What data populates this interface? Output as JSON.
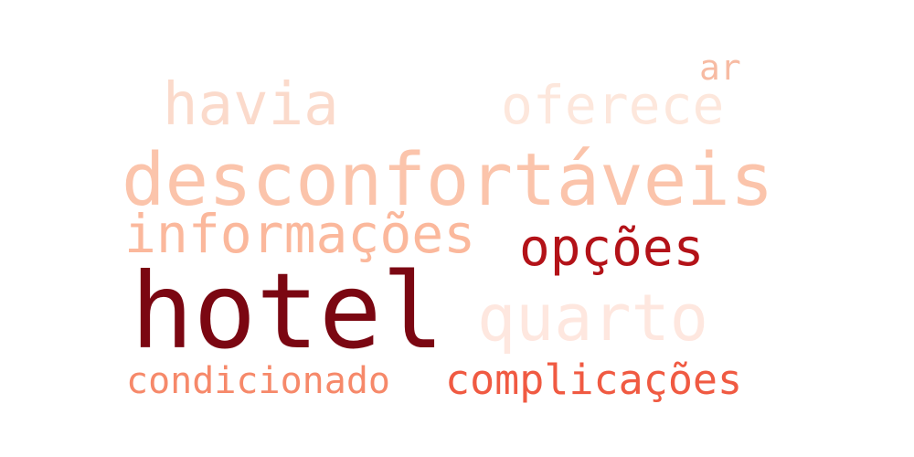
{
  "words": {
    "ar": {
      "text": "ar",
      "color": "#f7bba3"
    },
    "havia": {
      "text": "havia",
      "color": "#fbdacb"
    },
    "oferece": {
      "text": "oferece",
      "color": "#fde7dc"
    },
    "desconfortaveis": {
      "text": "desconfortáveis",
      "color": "#fbc4ab"
    },
    "informacoes": {
      "text": "informações",
      "color": "#fbb89c"
    },
    "opcoes": {
      "text": "opções",
      "color": "#b31218"
    },
    "hotel": {
      "text": "hotel",
      "color": "#7b0712"
    },
    "quarto": {
      "text": "quarto",
      "color": "#fee7df"
    },
    "condicionado": {
      "text": "condicionado",
      "color": "#f6896a"
    },
    "complicacoes": {
      "text": "complicações",
      "color": "#f05a42"
    }
  }
}
